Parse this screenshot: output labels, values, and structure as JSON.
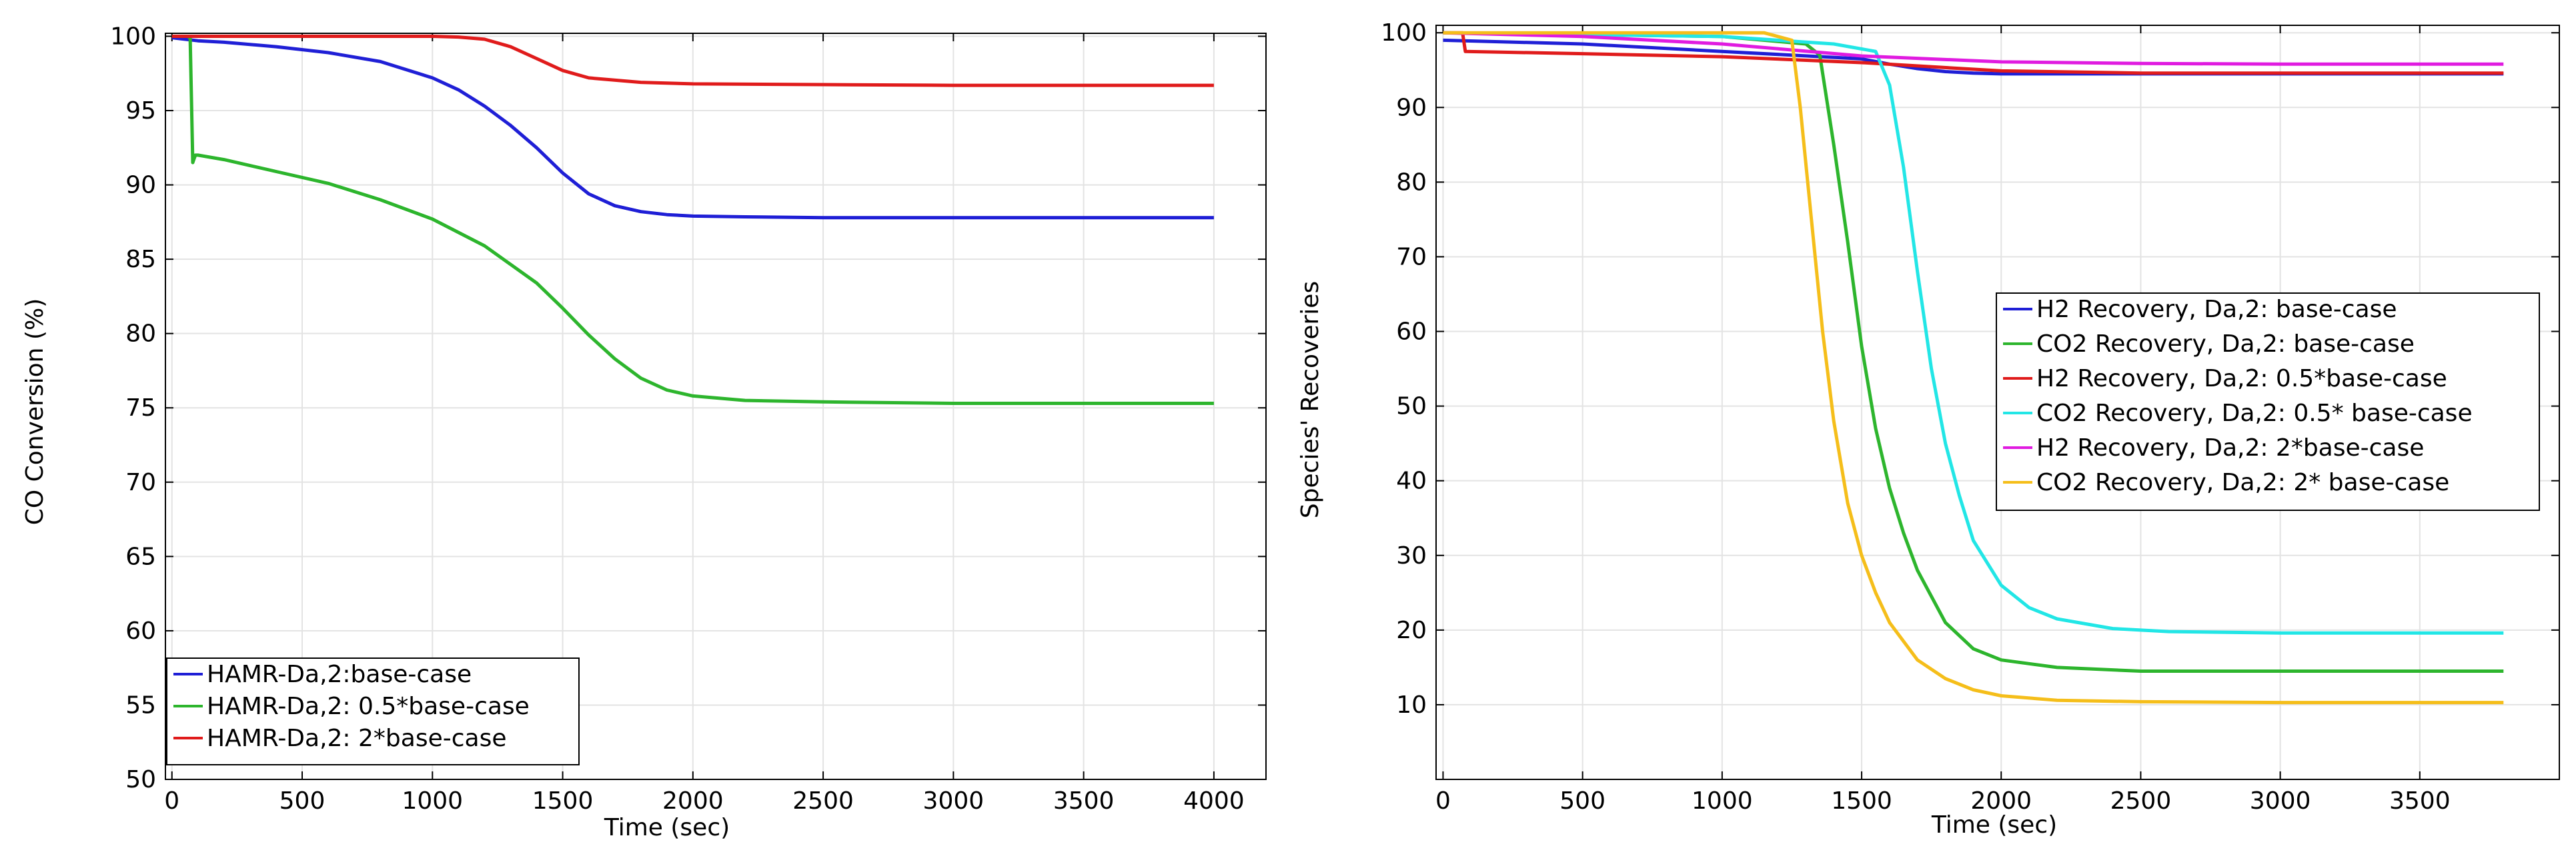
{
  "chart_data": [
    {
      "type": "line",
      "xlabel": "Time (sec)",
      "ylabel": "CO Conversion (%)",
      "xlim": [
        -25,
        4200
      ],
      "ylim": [
        50,
        100.2
      ],
      "xticks": [
        0,
        500,
        1000,
        1500,
        2000,
        2500,
        3000,
        3500,
        4000
      ],
      "yticks": [
        50,
        55,
        60,
        65,
        70,
        75,
        80,
        85,
        90,
        95,
        100
      ],
      "grid": true,
      "legend_position": "bottom-left",
      "series": [
        {
          "name": "HAMR-Da,2:base-case",
          "color": "#1f1fd6",
          "x": [
            0,
            100,
            200,
            400,
            600,
            800,
            1000,
            1100,
            1200,
            1300,
            1400,
            1500,
            1600,
            1700,
            1800,
            1900,
            2000,
            2200,
            2500,
            3000,
            3500,
            4000
          ],
          "y": [
            99.9,
            99.7,
            99.6,
            99.3,
            98.9,
            98.3,
            97.2,
            96.4,
            95.3,
            94.0,
            92.5,
            90.8,
            89.4,
            88.6,
            88.2,
            88.0,
            87.9,
            87.85,
            87.8,
            87.8,
            87.8,
            87.8
          ]
        },
        {
          "name": "HAMR-Da,2: 0.5*base-case",
          "color": "#2db52d",
          "x": [
            0,
            60,
            70,
            80,
            90,
            100,
            200,
            400,
            600,
            800,
            1000,
            1200,
            1400,
            1500,
            1600,
            1700,
            1800,
            1900,
            2000,
            2200,
            2500,
            3000,
            3500,
            4000
          ],
          "y": [
            100,
            100,
            99.9,
            91.5,
            92.0,
            92.0,
            91.7,
            90.9,
            90.1,
            89.0,
            87.7,
            85.9,
            83.4,
            81.7,
            79.9,
            78.3,
            77.0,
            76.2,
            75.8,
            75.5,
            75.4,
            75.3,
            75.3,
            75.3
          ]
        },
        {
          "name": "HAMR-Da,2: 2*base-case",
          "color": "#e01b1b",
          "x": [
            0,
            500,
            1000,
            1100,
            1200,
            1300,
            1400,
            1500,
            1600,
            1800,
            2000,
            2500,
            3000,
            3500,
            4000
          ],
          "y": [
            100,
            100,
            100,
            99.95,
            99.8,
            99.3,
            98.5,
            97.7,
            97.2,
            96.9,
            96.8,
            96.75,
            96.7,
            96.7,
            96.7
          ]
        }
      ]
    },
    {
      "type": "line",
      "xlabel": "Time (sec)",
      "ylabel": "Species' Recoveries",
      "xlim": [
        -25,
        4000
      ],
      "ylim": [
        0,
        101
      ],
      "xticks": [
        0,
        500,
        1000,
        1500,
        2000,
        2500,
        3000,
        3500
      ],
      "yticks": [
        10,
        20,
        30,
        40,
        50,
        60,
        70,
        80,
        90,
        100
      ],
      "grid": true,
      "legend_position": "center-right",
      "series": [
        {
          "name": "H2 Recovery, Da,2: base-case",
          "color": "#1f1fd6",
          "x": [
            0,
            500,
            1000,
            1500,
            1600,
            1700,
            1800,
            1900,
            2000,
            2500,
            3000,
            3800
          ],
          "y": [
            99,
            98.5,
            97.5,
            96.5,
            95.8,
            95.2,
            94.8,
            94.6,
            94.5,
            94.5,
            94.5,
            94.5
          ]
        },
        {
          "name": "CO2 Recovery, Da,2: base-case",
          "color": "#2db52d",
          "x": [
            0,
            1000,
            1300,
            1350,
            1400,
            1450,
            1500,
            1550,
            1600,
            1650,
            1700,
            1800,
            1900,
            2000,
            2200,
            2500,
            3000,
            3800
          ],
          "y": [
            100,
            99.5,
            98.5,
            97,
            85,
            72,
            58,
            47,
            39,
            33,
            28,
            21,
            17.5,
            16,
            15,
            14.5,
            14.5,
            14.5
          ]
        },
        {
          "name": "H2 Recovery, Da,2: 0.5*base-case",
          "color": "#e01b1b",
          "x": [
            0,
            70,
            80,
            500,
            1000,
            1500,
            2000,
            2500,
            3000,
            3800
          ],
          "y": [
            100,
            100,
            97.5,
            97.2,
            96.8,
            96.0,
            94.9,
            94.6,
            94.6,
            94.6
          ]
        },
        {
          "name": "CO2 Recovery, Da,2: 0.5* base-case",
          "color": "#22e6e6",
          "x": [
            0,
            1000,
            1400,
            1550,
            1600,
            1650,
            1700,
            1750,
            1800,
            1850,
            1900,
            2000,
            2100,
            2200,
            2400,
            2600,
            3000,
            3800
          ],
          "y": [
            100,
            99.5,
            98.5,
            97.5,
            93,
            82,
            68,
            55,
            45,
            38,
            32,
            26,
            23,
            21.5,
            20.2,
            19.8,
            19.6,
            19.6
          ]
        },
        {
          "name": "H2 Recovery, Da,2: 2*base-case",
          "color": "#e01be0",
          "x": [
            0,
            500,
            1000,
            1500,
            2000,
            2500,
            3000,
            3800
          ],
          "y": [
            100,
            99.5,
            98.5,
            96.9,
            96.1,
            95.9,
            95.8,
            95.8
          ]
        },
        {
          "name": "CO2 Recovery, Da,2: 2* base-case",
          "color": "#f5be1a",
          "x": [
            0,
            1150,
            1200,
            1250,
            1280,
            1320,
            1360,
            1400,
            1450,
            1500,
            1550,
            1600,
            1700,
            1800,
            1900,
            2000,
            2200,
            2500,
            3000,
            3800
          ],
          "y": [
            100,
            100,
            99.5,
            99,
            90,
            75,
            60,
            48,
            37,
            30,
            25,
            21,
            16,
            13.5,
            12,
            11.2,
            10.6,
            10.4,
            10.3,
            10.3
          ]
        }
      ]
    }
  ]
}
